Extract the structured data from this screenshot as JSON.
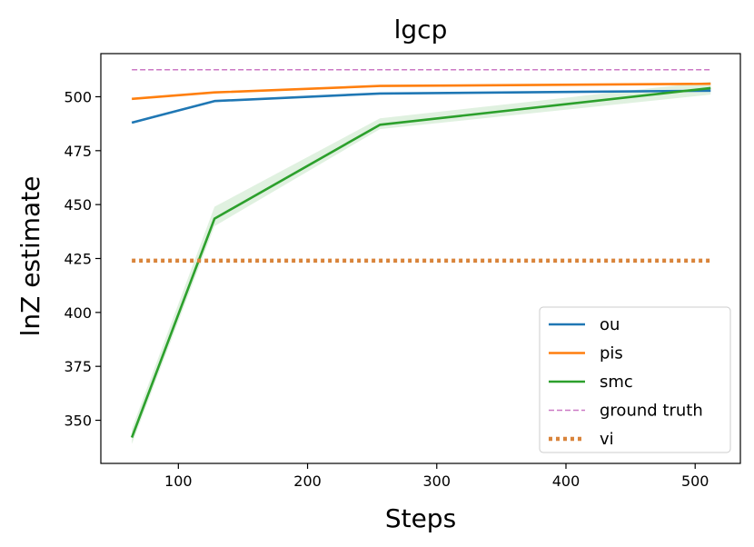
{
  "chart_data": {
    "type": "line",
    "title": "lgcp",
    "xlabel": "Steps",
    "ylabel": "lnZ estimate",
    "xlim": [
      40,
      535
    ],
    "ylim": [
      330,
      520
    ],
    "xticks": [
      100,
      200,
      300,
      400,
      500
    ],
    "yticks": [
      350,
      375,
      400,
      425,
      450,
      475,
      500
    ],
    "grid": false,
    "legend_position": "lower-right",
    "x": [
      64,
      128,
      256,
      512
    ],
    "series": [
      {
        "name": "ou",
        "color": "#1f77b4",
        "style": "solid",
        "values": [
          488,
          498,
          501.5,
          502.8
        ],
        "band": null
      },
      {
        "name": "pis",
        "color": "#ff7f0e",
        "style": "solid",
        "values": [
          499,
          502,
          505,
          506
        ],
        "band": null
      },
      {
        "name": "smc",
        "color": "#2ca02c",
        "style": "solid",
        "values": [
          342,
          443.5,
          487,
          504
        ],
        "band": [
          [
            339,
            346
          ],
          [
            440,
            449
          ],
          [
            485,
            490
          ],
          [
            501,
            507
          ]
        ]
      },
      {
        "name": "ground truth",
        "color": "#cc79c4",
        "style": "dashed",
        "values": [
          512.5,
          512.5,
          512.5,
          512.5
        ],
        "band": null
      },
      {
        "name": "vi",
        "color": "#d9843b",
        "style": "dotted",
        "values": [
          424,
          424,
          424,
          424
        ],
        "band": null
      }
    ]
  }
}
